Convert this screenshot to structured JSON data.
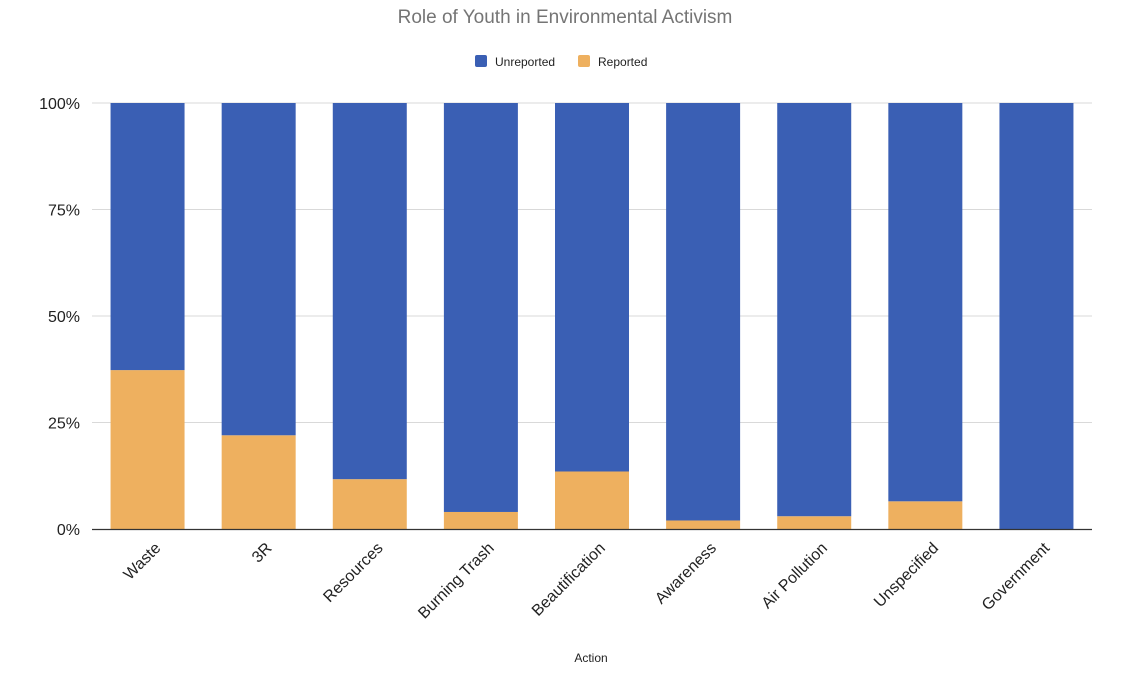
{
  "chart_data": {
    "type": "bar",
    "stacked": true,
    "normalized": true,
    "title": "Role of Youth in Environmental Activism",
    "xlabel": "Action",
    "ylabel": "",
    "ylim": [
      0,
      100
    ],
    "y_ticks": [
      "0%",
      "25%",
      "50%",
      "75%",
      "100%"
    ],
    "grid": true,
    "legend_position": "top-center",
    "categories": [
      "Waste",
      "3R",
      "Resources",
      "Burning Trash",
      "Beautification",
      "Awareness",
      "Air Pollution",
      "Unspecified",
      "Government"
    ],
    "series": [
      {
        "name": "Unreported",
        "color": "#3a5fb4",
        "values": [
          62.7,
          78.0,
          88.3,
          96.0,
          86.5,
          98.0,
          97.0,
          93.5,
          100.0
        ]
      },
      {
        "name": "Reported",
        "color": "#eeb05f",
        "values": [
          37.3,
          22.0,
          11.7,
          4.0,
          13.5,
          2.0,
          3.0,
          6.5,
          0.0
        ]
      }
    ]
  }
}
